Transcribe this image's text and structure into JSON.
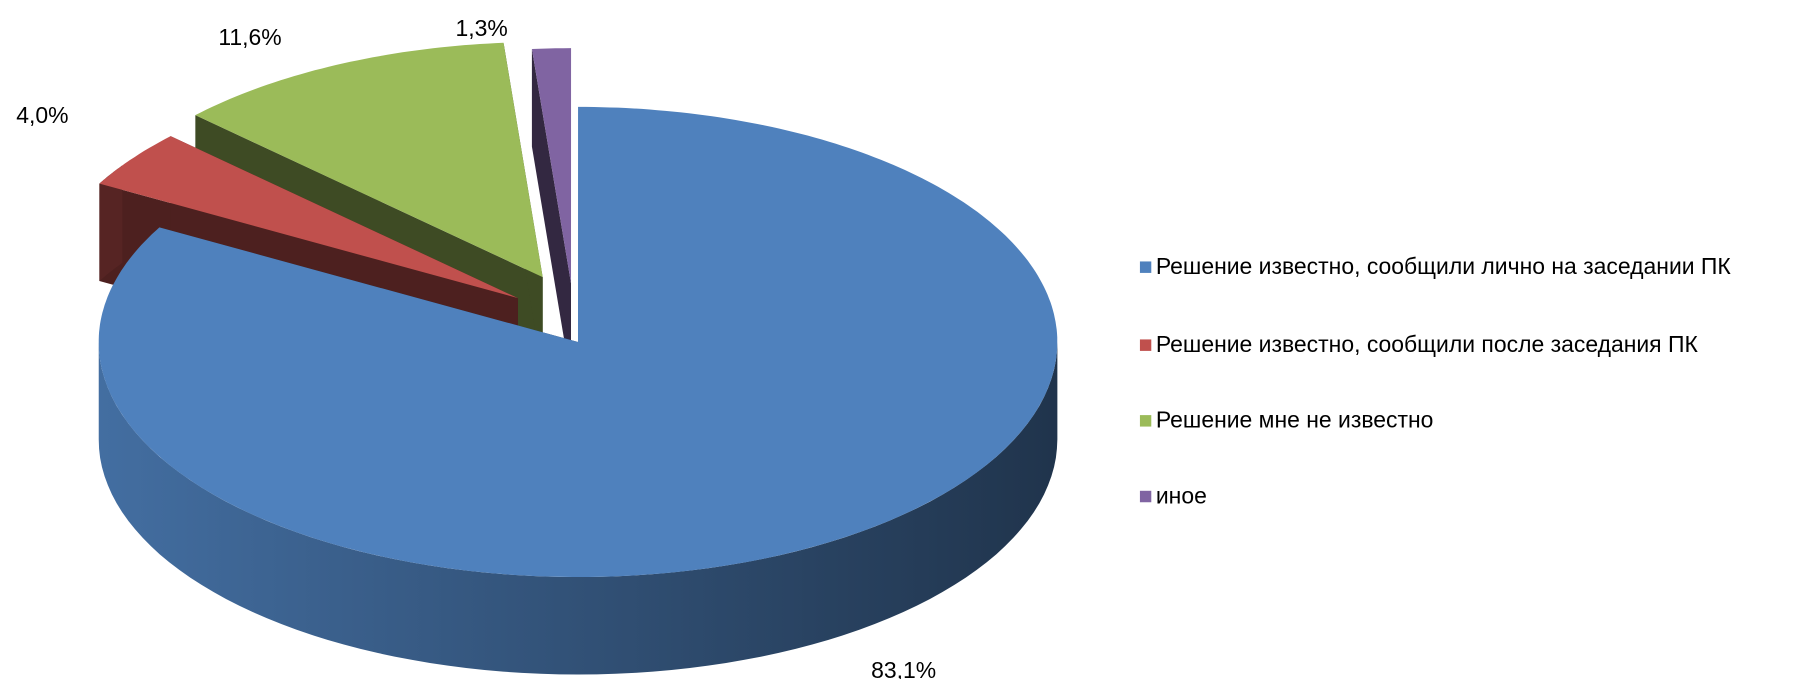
{
  "chart_data": {
    "type": "pie3d",
    "categories": [
      "Решение известно, сообщили лично на заседании ПК",
      "Решение известно, сообщили после заседания ПК",
      "Решение мне не известно",
      "иное"
    ],
    "values": [
      83.1,
      4.0,
      11.6,
      1.3
    ],
    "value_labels": [
      "83,1%",
      "4,0%",
      "11,6%",
      "1,3%"
    ],
    "colors": [
      "#4f81bd",
      "#c0504d",
      "#9bbb59",
      "#8064a2"
    ],
    "legend": "right"
  }
}
